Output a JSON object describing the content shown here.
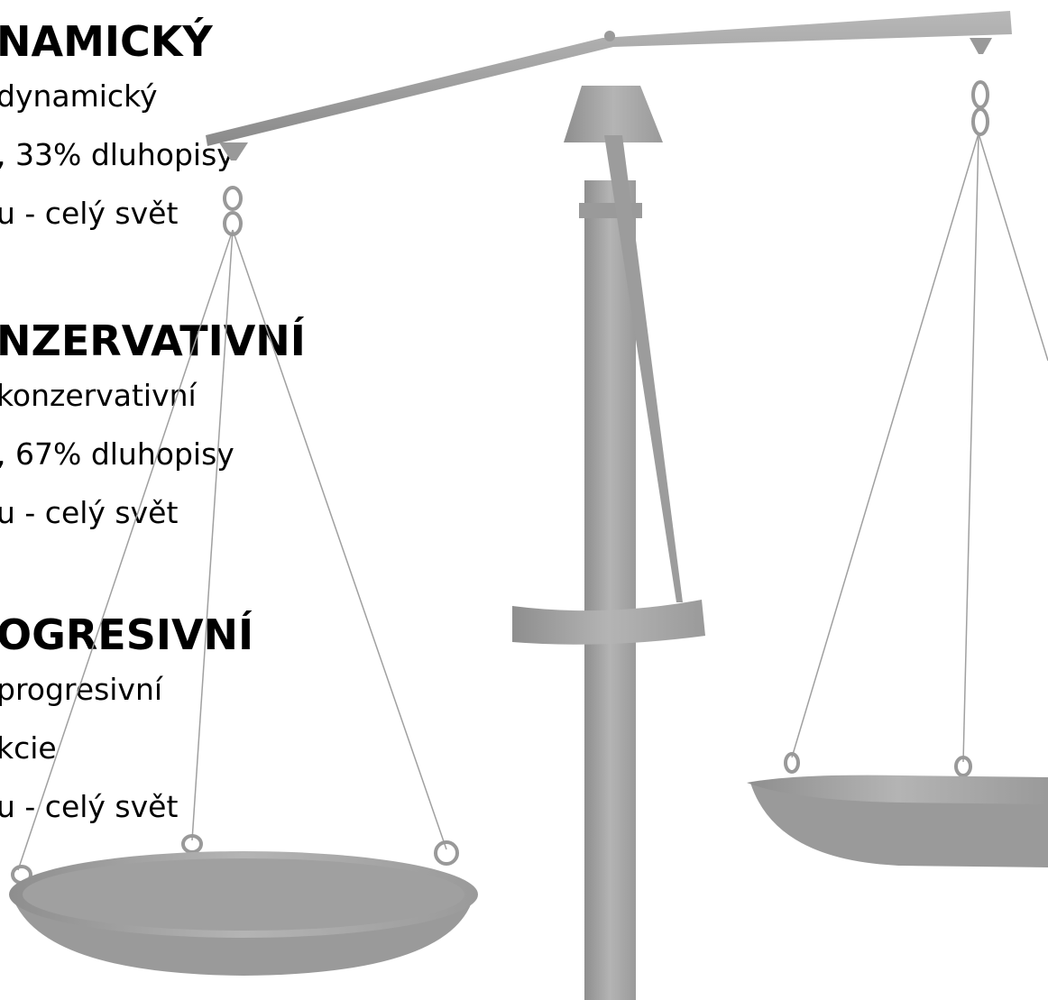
{
  "sections": [
    {
      "heading": "NAMICKÝ",
      "lines": [
        "dynamický",
        ", 33% dluhopisy",
        "u - celý svět"
      ]
    },
    {
      "heading": "NZERVATIVNÍ",
      "lines": [
        "konzervativní",
        ", 67% dluhopisy",
        "u - celý svět"
      ]
    },
    {
      "heading": "OGRESIVNÍ",
      "lines": [
        "progresivní",
        "kcie",
        "u - celý svět"
      ]
    }
  ]
}
